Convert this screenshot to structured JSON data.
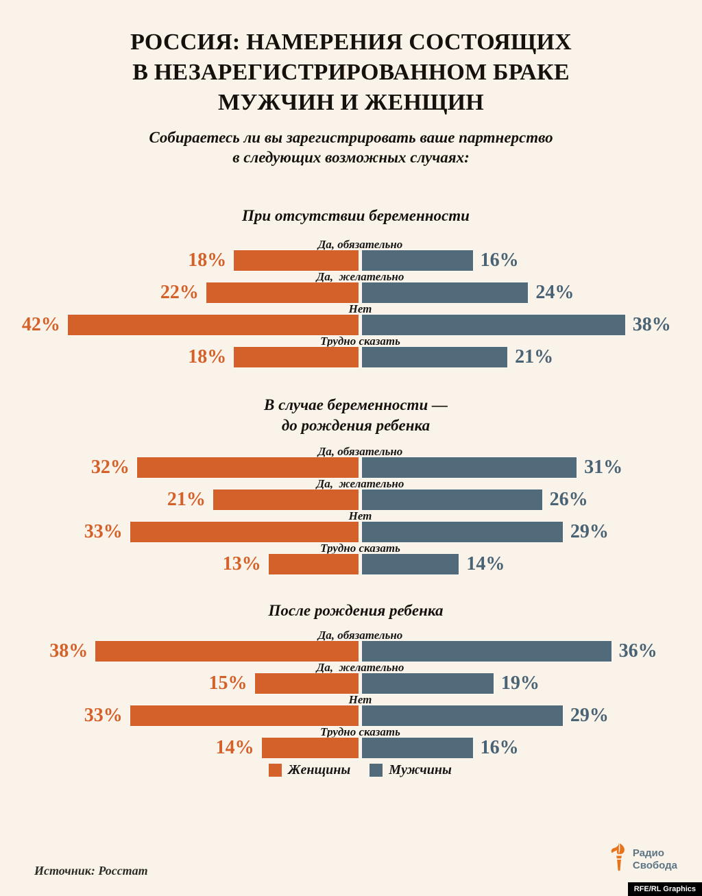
{
  "page": {
    "title_lines": [
      "РОССИЯ: НАМЕРЕНИЯ СОСТОЯЩИХ",
      "В НЕЗАРЕГИСТРИРОВАННОМ БРАКЕ",
      "МУЖЧИН И ЖЕНЩИН"
    ],
    "subtitle_lines": [
      "Собираетесь ли вы зарегистрировать ваше партнерство",
      "в следующих возможных случаях:"
    ]
  },
  "chart_data": {
    "type": "bar",
    "orientation": "diverging-horizontal",
    "unit": "%",
    "value_range": [
      0,
      42
    ],
    "legend_position": "bottom",
    "value_labels": "outside",
    "series_names": [
      "Женщины",
      "Мужчины"
    ],
    "colors": {
      "women": "#d4602a",
      "men": "#526b7a",
      "men_value_text": "#496274",
      "background": "#faf3e9",
      "text": "#15120d"
    },
    "sections": [
      {
        "title_lines": [
          "При отсутствии беременности"
        ],
        "rows": [
          {
            "label": "Да, обязательно",
            "women": 18,
            "men": 16
          },
          {
            "label": "Да,  желательно",
            "women": 22,
            "men": 24
          },
          {
            "label": "Нет",
            "women": 42,
            "men": 38
          },
          {
            "label": "Трудно сказать",
            "women": 18,
            "men": 21
          }
        ]
      },
      {
        "title_lines": [
          "В случае беременности —",
          "до рождения ребенка"
        ],
        "rows": [
          {
            "label": "Да, обязательно",
            "women": 32,
            "men": 31
          },
          {
            "label": "Да,  желательно",
            "women": 21,
            "men": 26
          },
          {
            "label": "Нет",
            "women": 33,
            "men": 29
          },
          {
            "label": "Трудно сказать",
            "women": 13,
            "men": 14
          }
        ]
      },
      {
        "title_lines": [
          "После рождения ребенка"
        ],
        "rows": [
          {
            "label": "Да, обязательно",
            "women": 38,
            "men": 36
          },
          {
            "label": "Да,  желательно",
            "women": 15,
            "men": 19
          },
          {
            "label": "Нет",
            "women": 33,
            "men": 29
          },
          {
            "label": "Трудно сказать",
            "women": 14,
            "men": 16
          }
        ]
      }
    ]
  },
  "legend": {
    "women_label": "Женщины",
    "men_label": "Мужчины"
  },
  "footer": {
    "source": "Источник: Росстат",
    "logo_line1": "Радио",
    "logo_line2": "Свобода",
    "credit": "RFE/RL Graphics"
  }
}
